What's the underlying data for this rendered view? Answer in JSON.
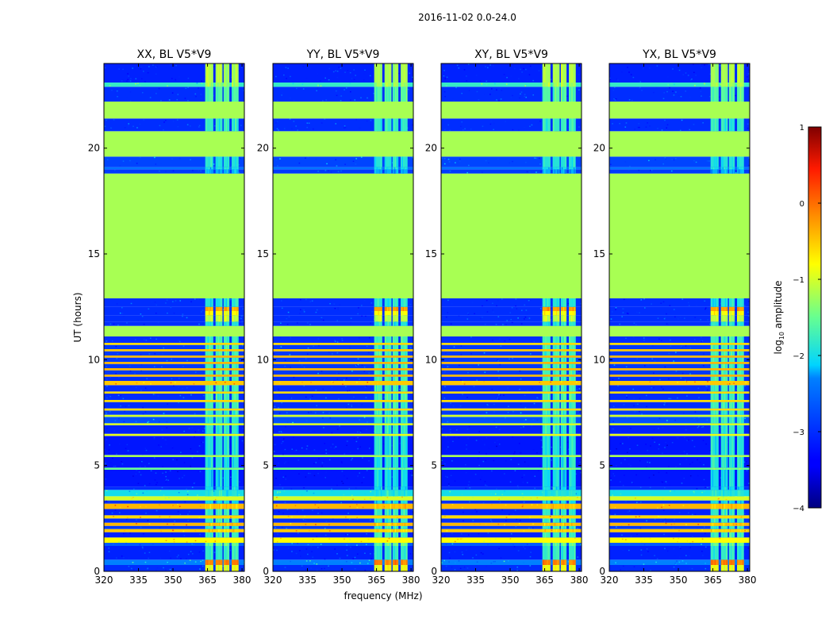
{
  "figure_title": "2016-11-02 0.0-24.0",
  "chart_data": {
    "type": "heatmap",
    "suptitle": "2016-11-02 0.0-24.0",
    "xlabel": "frequency (MHz)",
    "ylabel": "UT (hours)",
    "xlim": [
      320,
      381
    ],
    "ylim": [
      0,
      24
    ],
    "xticks": [
      320,
      335,
      350,
      365,
      380
    ],
    "yticks": [
      0,
      5,
      10,
      15,
      20
    ],
    "colorbar": {
      "label": "log10 amplitude",
      "label_main": "log",
      "label_sub": "10",
      "label_rest": " amplitude",
      "range": [
        -4,
        1
      ],
      "ticks": [
        -4,
        -3,
        -2,
        -1,
        0,
        1
      ],
      "tick_labels": [
        "−4",
        "−3",
        "−2",
        "−1",
        "0",
        "1"
      ],
      "colormap": "jet"
    },
    "panels": [
      {
        "title": "XX, BL V5*V9"
      },
      {
        "title": "YY, BL V5*V9"
      },
      {
        "title": "XY, BL V5*V9"
      },
      {
        "title": "YX, BL V5*V9"
      }
    ],
    "flagged_value": -1.2,
    "rfi_band_mhz": [
      [
        364.0,
        367.5
      ],
      [
        368.5,
        371.5
      ],
      [
        372.0,
        374.5
      ],
      [
        375.5,
        378.5
      ]
    ],
    "time_segments": [
      {
        "t0": 0.0,
        "t1": 0.3,
        "base": -3.0,
        "rfi": -0.9
      },
      {
        "t0": 0.3,
        "t1": 0.55,
        "base": -2.3,
        "rfi": -0.1
      },
      {
        "t0": 0.55,
        "t1": 1.2,
        "base": -3.1,
        "rfi": -1.8
      },
      {
        "t0": 1.2,
        "t1": 1.35,
        "base": -2.6,
        "rfi": -1.5
      },
      {
        "t0": 1.35,
        "t1": 1.6,
        "base": -0.8,
        "rfi": -0.8
      },
      {
        "t0": 1.6,
        "t1": 1.85,
        "base": -3.1,
        "rfi": -1.7
      },
      {
        "t0": 1.85,
        "t1": 2.0,
        "base": -0.5,
        "rfi": -0.6
      },
      {
        "t0": 2.0,
        "t1": 2.15,
        "base": -2.9,
        "rfi": -1.8
      },
      {
        "t0": 2.15,
        "t1": 2.3,
        "base": -0.4,
        "rfi": -0.5
      },
      {
        "t0": 2.3,
        "t1": 2.5,
        "base": -3.0,
        "rfi": -1.8
      },
      {
        "t0": 2.5,
        "t1": 2.65,
        "base": -0.6,
        "rfi": -0.6
      },
      {
        "t0": 2.65,
        "t1": 2.95,
        "base": -3.1,
        "rfi": -1.8
      },
      {
        "t0": 2.95,
        "t1": 3.2,
        "base": -0.4,
        "rfi": -0.5
      },
      {
        "t0": 3.2,
        "t1": 3.35,
        "base": -3.0,
        "rfi": -2.0
      },
      {
        "t0": 3.35,
        "t1": 3.55,
        "base": -1.0,
        "rfi": -1.0
      },
      {
        "t0": 3.55,
        "t1": 3.85,
        "base": -2.0,
        "rfi": -1.9
      },
      {
        "t0": 3.85,
        "t1": 4.0,
        "base": -3.0,
        "rfi": -2.0
      },
      {
        "t0": 4.0,
        "t1": 4.8,
        "base": -3.2,
        "rfi": -2.0
      },
      {
        "t0": 4.8,
        "t1": 4.9,
        "base": -1.5,
        "rfi": -1.4
      },
      {
        "t0": 4.9,
        "t1": 5.4,
        "base": -3.2,
        "rfi": -1.9
      },
      {
        "t0": 5.4,
        "t1": 5.5,
        "base": -1.2,
        "rfi": -1.2
      },
      {
        "t0": 5.5,
        "t1": 6.4,
        "base": -3.2,
        "rfi": -1.9
      },
      {
        "t0": 6.4,
        "t1": 6.5,
        "base": -0.9,
        "rfi": -0.9
      },
      {
        "t0": 6.5,
        "t1": 6.9,
        "base": -3.1,
        "rfi": -1.8
      },
      {
        "t0": 6.9,
        "t1": 7.0,
        "base": -1.0,
        "rfi": -1.0
      },
      {
        "t0": 7.0,
        "t1": 7.3,
        "base": -2.7,
        "rfi": -1.8
      },
      {
        "t0": 7.3,
        "t1": 7.4,
        "base": -1.0,
        "rfi": -1.0
      },
      {
        "t0": 7.4,
        "t1": 7.6,
        "base": -2.9,
        "rfi": -1.8
      },
      {
        "t0": 7.6,
        "t1": 7.7,
        "base": -0.6,
        "rfi": -0.6
      },
      {
        "t0": 7.7,
        "t1": 8.0,
        "base": -3.0,
        "rfi": -1.7
      },
      {
        "t0": 8.0,
        "t1": 8.1,
        "base": -0.6,
        "rfi": -0.6
      },
      {
        "t0": 8.1,
        "t1": 8.4,
        "base": -3.0,
        "rfi": -1.7
      },
      {
        "t0": 8.4,
        "t1": 8.5,
        "base": -0.6,
        "rfi": -0.6
      },
      {
        "t0": 8.5,
        "t1": 8.8,
        "base": -3.0,
        "rfi": -1.7
      },
      {
        "t0": 8.8,
        "t1": 9.0,
        "base": -0.5,
        "rfi": -0.5
      },
      {
        "t0": 9.0,
        "t1": 9.2,
        "base": -3.0,
        "rfi": -1.7
      },
      {
        "t0": 9.2,
        "t1": 9.3,
        "base": -0.4,
        "rfi": -0.4
      },
      {
        "t0": 9.3,
        "t1": 9.5,
        "base": -2.9,
        "rfi": -1.7
      },
      {
        "t0": 9.5,
        "t1": 9.6,
        "base": -0.4,
        "rfi": -0.4
      },
      {
        "t0": 9.6,
        "t1": 9.8,
        "base": -2.9,
        "rfi": -1.7
      },
      {
        "t0": 9.8,
        "t1": 9.9,
        "base": -0.4,
        "rfi": -0.4
      },
      {
        "t0": 9.9,
        "t1": 10.1,
        "base": -2.9,
        "rfi": -1.7
      },
      {
        "t0": 10.1,
        "t1": 10.2,
        "base": -0.4,
        "rfi": -0.4
      },
      {
        "t0": 10.2,
        "t1": 10.4,
        "base": -2.9,
        "rfi": -1.7
      },
      {
        "t0": 10.4,
        "t1": 10.5,
        "base": -0.5,
        "rfi": -0.5
      },
      {
        "t0": 10.5,
        "t1": 10.7,
        "base": -2.9,
        "rfi": -1.7
      },
      {
        "t0": 10.7,
        "t1": 10.8,
        "base": -0.6,
        "rfi": -0.6
      },
      {
        "t0": 10.8,
        "t1": 11.1,
        "base": -3.0,
        "rfi": -1.7
      },
      {
        "t0": 11.1,
        "t1": 11.6,
        "base": -1.2,
        "rfi": -1.2
      },
      {
        "t0": 11.6,
        "t1": 11.8,
        "base": -3.0,
        "rfi": -1.9
      },
      {
        "t0": 11.8,
        "t1": 12.1,
        "base": -3.0,
        "rfi": -1.1
      },
      {
        "t0": 12.1,
        "t1": 12.3,
        "base": -3.0,
        "rfi": -0.8
      },
      {
        "t0": 12.3,
        "t1": 12.5,
        "base": -3.0,
        "rfi": -0.3
      },
      {
        "t0": 12.5,
        "t1": 12.9,
        "base": -3.0,
        "rfi": -1.9
      },
      {
        "t0": 12.9,
        "t1": 18.8,
        "base": -1.2,
        "rfi": -1.2
      },
      {
        "t0": 18.8,
        "t1": 19.0,
        "base": -2.9,
        "rfi": -2.2
      },
      {
        "t0": 19.0,
        "t1": 19.1,
        "base": -2.4,
        "rfi": -2.0
      },
      {
        "t0": 19.1,
        "t1": 19.6,
        "base": -2.8,
        "rfi": -1.9
      },
      {
        "t0": 19.6,
        "t1": 20.8,
        "base": -1.2,
        "rfi": -1.2
      },
      {
        "t0": 20.8,
        "t1": 21.4,
        "base": -3.0,
        "rfi": -1.8
      },
      {
        "t0": 21.4,
        "t1": 22.2,
        "base": -1.2,
        "rfi": -1.2
      },
      {
        "t0": 22.2,
        "t1": 22.9,
        "base": -3.0,
        "rfi": -1.6
      },
      {
        "t0": 22.9,
        "t1": 23.1,
        "base": -1.8,
        "rfi": -1.2
      },
      {
        "t0": 23.1,
        "t1": 24.0,
        "base": -3.1,
        "rfi": -1.2
      }
    ]
  }
}
